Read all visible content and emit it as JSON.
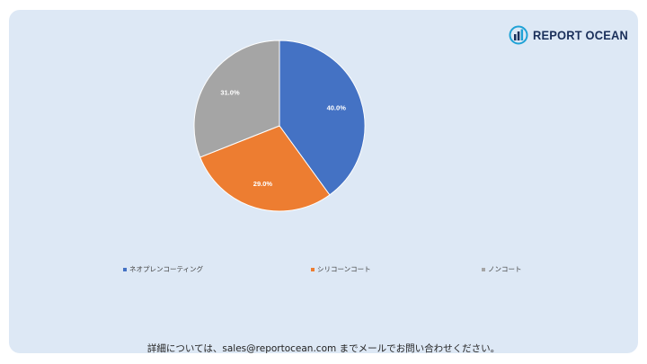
{
  "brand": {
    "name": "REPORT OCEAN"
  },
  "chart_data": {
    "type": "pie",
    "categories": [
      "ネオプレンコーティング",
      "シリコーンコート",
      "ノンコート"
    ],
    "values": [
      40.0,
      29.0,
      31.0
    ],
    "labels": [
      "40.0%",
      "29.0%",
      "31.0%"
    ],
    "colors": [
      "#4472c4",
      "#ed7d31",
      "#a5a5a5"
    ],
    "legend_position": "bottom",
    "start_angle": "12 o'clock, clockwise"
  },
  "footer": {
    "text": "詳細については、sales@reportocean.com までメールでお問い合わせください。"
  }
}
